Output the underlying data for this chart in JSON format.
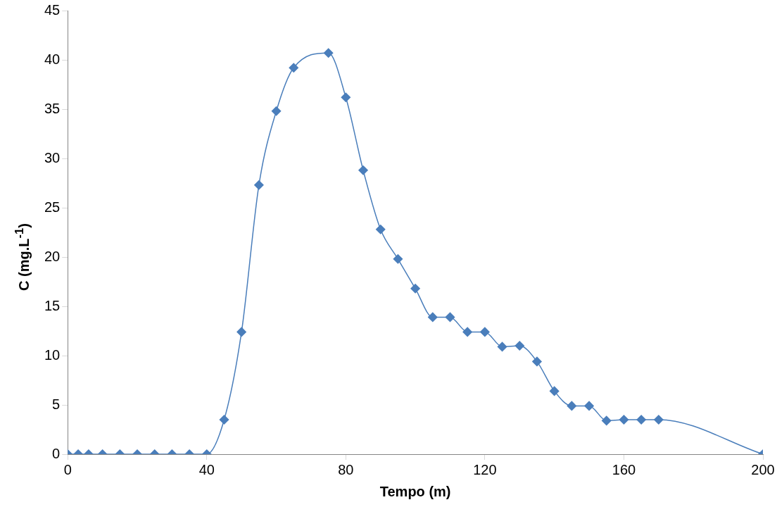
{
  "chart_data": {
    "type": "line",
    "xlabel": "Tempo (m)",
    "ylabel": "C (mg.L$^{-1}$)",
    "x": [
      0,
      3,
      6,
      10,
      15,
      20,
      25,
      30,
      35,
      40,
      45,
      50,
      55,
      60,
      65,
      75,
      80,
      85,
      90,
      95,
      100,
      105,
      110,
      115,
      120,
      125,
      130,
      135,
      140,
      145,
      150,
      155,
      160,
      165,
      170,
      200
    ],
    "series": [
      {
        "color": "#4a7ebb",
        "values": [
          0,
          0,
          0,
          0,
          0,
          0,
          0,
          0,
          0,
          0,
          3.5,
          12.4,
          27.3,
          34.8,
          39.2,
          40.7,
          36.2,
          28.8,
          22.8,
          19.8,
          16.8,
          13.9,
          13.9,
          12.4,
          12.4,
          10.9,
          11.0,
          9.4,
          6.4,
          4.9,
          4.9,
          3.4,
          3.5,
          3.5,
          3.5,
          0
        ]
      }
    ],
    "xlim": [
      0,
      200
    ],
    "xticks": [
      0,
      40,
      80,
      120,
      160,
      200
    ],
    "ylim": [
      0,
      45
    ],
    "yticks": [
      0,
      5,
      10,
      15,
      20,
      25,
      30,
      35,
      40,
      45
    ],
    "grid": false,
    "legend": false,
    "marker": "diamond",
    "line_style": "solid"
  }
}
